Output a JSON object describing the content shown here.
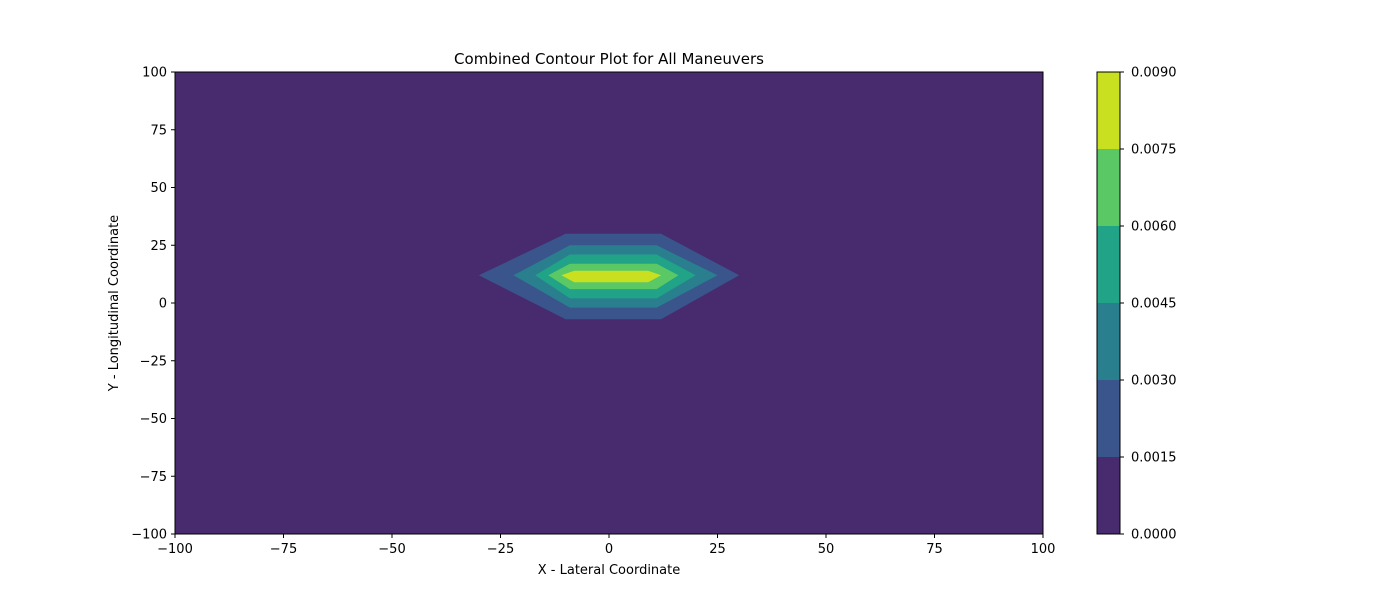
{
  "chart_data": {
    "type": "contour",
    "title": "Combined Contour Plot for All Maneuvers",
    "xlabel": "X - Lateral Coordinate",
    "ylabel": "Y - Longitudinal Coordinate",
    "xlim": [
      -100,
      100
    ],
    "ylim": [
      -100,
      100
    ],
    "xticks": [
      "−100",
      "−75",
      "−50",
      "−25",
      "0",
      "25",
      "50",
      "75",
      "100"
    ],
    "yticks": [
      "−100",
      "−75",
      "−50",
      "−25",
      "0",
      "25",
      "50",
      "75",
      "100"
    ],
    "xtick_values": [
      -100,
      -75,
      -50,
      -25,
      0,
      25,
      50,
      75,
      100
    ],
    "ytick_values": [
      -100,
      -75,
      -50,
      -25,
      0,
      25,
      50,
      75,
      100
    ],
    "colorbar": {
      "levels": [
        0.0,
        0.0015,
        0.003,
        0.0045,
        0.006,
        0.0075,
        0.009
      ],
      "tick_labels": [
        "0.0000",
        "0.0015",
        "0.0030",
        "0.0045",
        "0.0060",
        "0.0075",
        "0.0090"
      ],
      "colors": [
        "#472b6e",
        "#3a548c",
        "#2a7f8e",
        "#20a386",
        "#5ac864",
        "#c8e020"
      ]
    },
    "contour_bands": [
      {
        "level_index": 1,
        "polygon": [
          [
            -30,
            12
          ],
          [
            -10,
            30
          ],
          [
            12,
            30
          ],
          [
            30,
            12
          ],
          [
            12,
            -7
          ],
          [
            -10,
            -7
          ]
        ]
      },
      {
        "level_index": 2,
        "polygon": [
          [
            -22,
            12
          ],
          [
            -9,
            25
          ],
          [
            11,
            25
          ],
          [
            25,
            12
          ],
          [
            11,
            -2
          ],
          [
            -9,
            -2
          ]
        ]
      },
      {
        "level_index": 3,
        "polygon": [
          [
            -17,
            12
          ],
          [
            -9,
            21
          ],
          [
            11,
            21
          ],
          [
            20,
            12
          ],
          [
            11,
            2
          ],
          [
            -9,
            2
          ]
        ]
      },
      {
        "level_index": 4,
        "polygon": [
          [
            -14,
            12
          ],
          [
            -9,
            17
          ],
          [
            11,
            17
          ],
          [
            16,
            12
          ],
          [
            11,
            6
          ],
          [
            -9,
            6
          ]
        ]
      },
      {
        "level_index": 5,
        "polygon": [
          [
            -11,
            12
          ],
          [
            -8,
            14
          ],
          [
            9,
            14
          ],
          [
            12,
            12
          ],
          [
            9,
            9
          ],
          [
            -8,
            9
          ]
        ]
      }
    ]
  }
}
